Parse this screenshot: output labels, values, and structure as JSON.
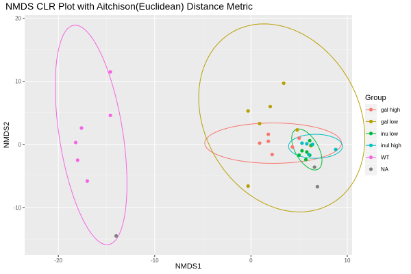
{
  "chart_data": {
    "type": "scatter",
    "title": "NMDS CLR Plot with Aitchison(Euclidean) Distance Metric",
    "xlabel": "NMDS1",
    "ylabel": "NMDS2",
    "xlim": [
      -23.5,
      10.5
    ],
    "ylim": [
      -17.5,
      20.5
    ],
    "xticks": [
      -20,
      -10,
      0,
      10
    ],
    "yticks": [
      -10,
      0,
      10,
      20
    ],
    "grid": true,
    "legend": {
      "title": "Group",
      "position": "right"
    },
    "series": [
      {
        "name": "gal high",
        "color": "#F8766D",
        "points": [
          [
            0.9,
            0.2
          ],
          [
            1.8,
            0.5
          ],
          [
            1.8,
            1.6
          ],
          [
            2.2,
            -1.6
          ],
          [
            4.3,
            -0.4
          ],
          [
            5.0,
            1.0
          ]
        ],
        "ellipse": {
          "cx": 2.3,
          "cy": 0.2,
          "rx": 7.1,
          "ry": 3.2,
          "angle": 0
        }
      },
      {
        "name": "gal low",
        "color": "#B79F00",
        "points": [
          [
            -0.3,
            5.3
          ],
          [
            0.9,
            3.3
          ],
          [
            2.0,
            6.0
          ],
          [
            3.4,
            9.7
          ],
          [
            4.8,
            2.3
          ],
          [
            -0.3,
            -6.6
          ],
          [
            6.2,
            -0.2
          ]
        ],
        "ellipse": {
          "cx": 3.2,
          "cy": 4.2,
          "rx": 8.0,
          "ry": 15.7,
          "angle": 30
        }
      },
      {
        "name": "inu low",
        "color": "#00BA38",
        "points": [
          [
            5.0,
            -1.7
          ],
          [
            5.3,
            -1.0
          ],
          [
            5.8,
            -1.2
          ],
          [
            5.7,
            -2.4
          ],
          [
            6.1,
            0.6
          ],
          [
            6.1,
            -1.7
          ],
          [
            6.3,
            -0.1
          ]
        ],
        "ellipse": {
          "cx": 5.8,
          "cy": -0.8,
          "rx": 1.2,
          "ry": 3.6,
          "angle": 30
        }
      },
      {
        "name": "inul high",
        "color": "#00BFC4",
        "points": [
          [
            5.3,
            0.2
          ],
          [
            6.4,
            0.0
          ],
          [
            8.8,
            -0.8
          ],
          [
            5.8,
            0.1
          ],
          [
            6.0,
            -1.6
          ]
        ],
        "ellipse": {
          "cx": 6.7,
          "cy": -0.3,
          "rx": 2.8,
          "ry": 1.9,
          "angle": 0
        }
      },
      {
        "name": "WT",
        "color": "#F564E3",
        "points": [
          [
            -14.6,
            11.5
          ],
          [
            -14.6,
            4.6
          ],
          [
            -17.6,
            2.6
          ],
          [
            -18.2,
            0.3
          ],
          [
            -18.0,
            -2.5
          ],
          [
            -17.0,
            -5.8
          ]
        ],
        "ellipse": {
          "cx": -16.6,
          "cy": 1.5,
          "rx": 3.3,
          "ry": 17.6,
          "angle": 9
        }
      },
      {
        "name": "NA",
        "color": "#7F7F7F",
        "points": [
          [
            -14.0,
            -14.5
          ],
          [
            6.6,
            -3.6
          ],
          [
            6.9,
            -6.7
          ]
        ]
      }
    ]
  }
}
